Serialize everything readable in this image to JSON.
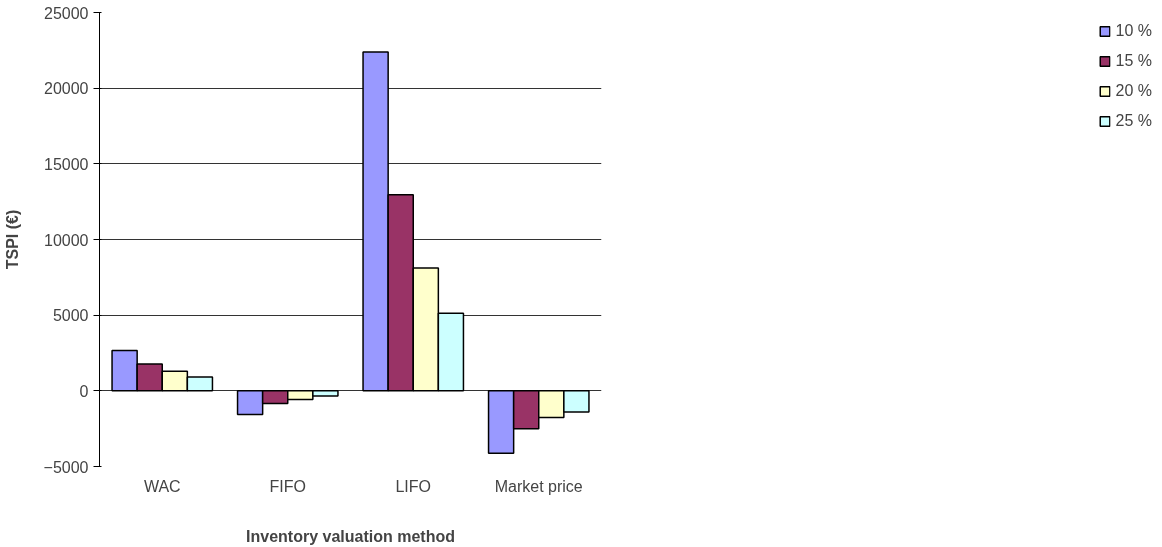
{
  "chart_data": {
    "type": "bar",
    "xlabel": "Inventory valuation method",
    "ylabel": "TSPI (€)",
    "categories": [
      "WAC",
      "FIFO",
      "LIFO",
      "Market price"
    ],
    "series": [
      {
        "name": "10 %",
        "color": "#9999ff",
        "values": [
          2670,
          -1560,
          22390,
          -4130
        ]
      },
      {
        "name": "15 %",
        "color": "#993366",
        "values": [
          1770,
          -830,
          12950,
          -2510
        ]
      },
      {
        "name": "20 %",
        "color": "#ffffcc",
        "values": [
          1300,
          -570,
          8120,
          -1770
        ]
      },
      {
        "name": "25 %",
        "color": "#ccffff",
        "values": [
          910,
          -340,
          5120,
          -1400
        ]
      }
    ],
    "ylim": [
      -5000,
      25000
    ],
    "yticks": [
      -5000,
      0,
      5000,
      10000,
      15000,
      20000,
      25000
    ],
    "grid": "y",
    "legend": "right"
  }
}
